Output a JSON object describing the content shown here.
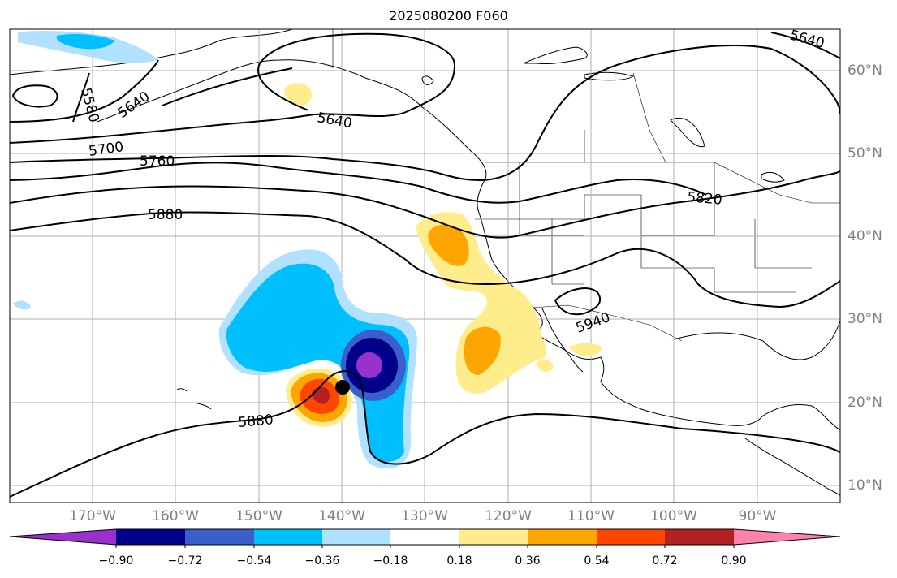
{
  "title": "2025080200 F060",
  "lon_labels": [
    "170°W",
    "160°W",
    "150°W",
    "140°W",
    "130°W",
    "120°W",
    "110°W",
    "100°W",
    "90°W"
  ],
  "lat_labels": [
    "60°N",
    "50°N",
    "40°N",
    "30°N",
    "20°N",
    "10°N"
  ],
  "contour_labels": [
    "5580",
    "5640",
    "5700",
    "5760",
    "5880",
    "5640",
    "5820",
    "5940",
    "5880",
    "5640"
  ],
  "colorbar": {
    "tick_labels": [
      "−0.90",
      "−0.72",
      "−0.54",
      "−0.36",
      "−0.18",
      "0.18",
      "0.36",
      "0.54",
      "0.72",
      "0.90"
    ],
    "colors": [
      "#9932cc",
      "#00008b",
      "#3a5fcd",
      "#00bfff",
      "#b0e2ff",
      "#ffffff",
      "#ffec8b",
      "#ffa500",
      "#ff4500",
      "#b22222",
      "#ff82ab"
    ]
  },
  "marker": {
    "name": "black dot",
    "lon": -140,
    "lat": 22
  },
  "map_extent": {
    "lon_min": -180,
    "lon_max": -80,
    "lat_min": 8,
    "lat_max": 65
  }
}
